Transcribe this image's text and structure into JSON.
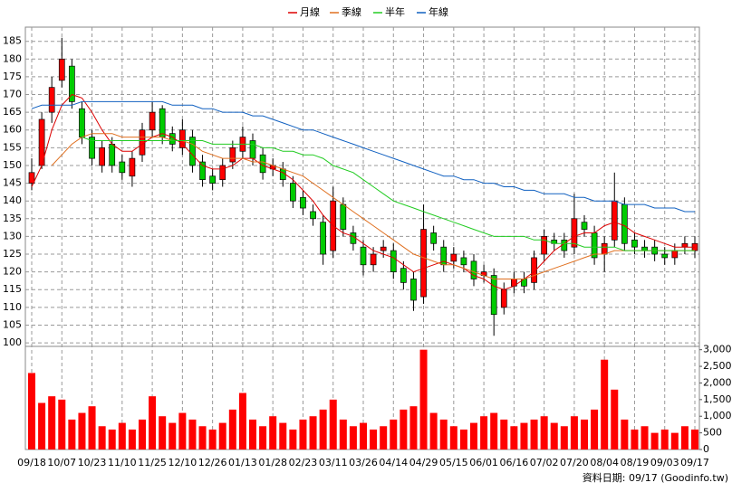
{
  "chart_data": {
    "type": "candlestick",
    "categories": [
      "09/18",
      null,
      null,
      "10/07",
      null,
      null,
      "10/23",
      null,
      null,
      "11/10",
      null,
      null,
      "11/25",
      null,
      null,
      "12/10",
      null,
      null,
      "12/26",
      null,
      null,
      "01/13",
      null,
      null,
      "01/28",
      null,
      null,
      "02/23",
      null,
      null,
      "03/11",
      null,
      null,
      "03/26",
      null,
      null,
      "04/14",
      null,
      null,
      "04/29",
      null,
      null,
      "05/15",
      null,
      null,
      "06/01",
      null,
      null,
      "06/16",
      null,
      null,
      "07/02",
      null,
      null,
      "07/20",
      null,
      null,
      "08/04",
      null,
      null,
      "08/19",
      null,
      null,
      "09/03",
      null,
      null,
      "09/17"
    ],
    "open": [
      145,
      150,
      165,
      174,
      178,
      166,
      158,
      150,
      156,
      151,
      147,
      153,
      160,
      166,
      159,
      155,
      158,
      151,
      147,
      146,
      151,
      154,
      157,
      153,
      149,
      149,
      145,
      141,
      137,
      134,
      126,
      139,
      131,
      127,
      122,
      126,
      126,
      121,
      118,
      113,
      131,
      127,
      123,
      124,
      123,
      119,
      119,
      110,
      116,
      118,
      117,
      125,
      129,
      129,
      127,
      134,
      131,
      125,
      129,
      139,
      129,
      127,
      127,
      125,
      124,
      127,
      126
    ],
    "high": [
      152,
      165,
      175,
      186,
      180,
      168,
      160,
      157,
      158,
      153,
      154,
      162,
      168,
      167,
      161,
      163,
      160,
      153,
      149,
      152,
      157,
      161,
      159,
      155,
      152,
      151,
      147,
      143,
      139,
      136,
      144,
      141,
      133,
      129,
      127,
      129,
      128,
      123,
      120,
      139,
      133,
      129,
      127,
      126,
      125,
      122,
      121,
      117,
      120,
      120,
      126,
      132,
      131,
      131,
      142,
      136,
      133,
      130,
      148,
      141,
      131,
      129,
      129,
      127,
      128,
      130,
      130
    ],
    "low": [
      143,
      149,
      162,
      172,
      166,
      156,
      150,
      148,
      148,
      146,
      144,
      151,
      158,
      156,
      154,
      153,
      148,
      144,
      143,
      144,
      149,
      152,
      150,
      146,
      147,
      144,
      138,
      136,
      133,
      122,
      124,
      130,
      126,
      119,
      120,
      124,
      118,
      115,
      109,
      111,
      126,
      120,
      121,
      120,
      116,
      117,
      102,
      108,
      114,
      114,
      115,
      123,
      126,
      124,
      125,
      130,
      122,
      120,
      127,
      126,
      125,
      124,
      123,
      122,
      122,
      125,
      124
    ],
    "close": [
      148,
      163,
      172,
      180,
      168,
      158,
      152,
      155,
      150,
      148,
      152,
      160,
      165,
      158,
      156,
      160,
      150,
      146,
      145,
      150,
      155,
      158,
      152,
      148,
      150,
      146,
      140,
      138,
      135,
      125,
      140,
      132,
      128,
      122,
      125,
      127,
      120,
      117,
      112,
      132,
      128,
      122,
      125,
      122,
      118,
      120,
      108,
      115,
      118,
      116,
      124,
      130,
      128,
      126,
      135,
      132,
      124,
      128,
      140,
      128,
      127,
      126,
      125,
      124,
      126,
      128,
      128
    ],
    "up_color": "#ff0000",
    "down_color": "#00cc00",
    "series": [
      {
        "name": "月線",
        "color": "#dd0000",
        "values": [
          144,
          150,
          160,
          167,
          170,
          169,
          165,
          160,
          156,
          154,
          154,
          156,
          158,
          159,
          158,
          156,
          153,
          150,
          149,
          149,
          150,
          152,
          152,
          150,
          149,
          148,
          146,
          143,
          140,
          136,
          133,
          131,
          130,
          128,
          126,
          125,
          124,
          122,
          120,
          121,
          122,
          123,
          122,
          121,
          119,
          118,
          116,
          115,
          116,
          118,
          120,
          123,
          126,
          128,
          130,
          131,
          131,
          133,
          134,
          133,
          131,
          130,
          129,
          128,
          127,
          127,
          127
        ]
      },
      {
        "name": "季線",
        "color": "#e07020",
        "values": [
          null,
          null,
          150,
          153,
          156,
          158,
          159,
          159,
          159,
          158,
          158,
          158,
          158,
          158,
          157,
          157,
          156,
          154,
          153,
          152,
          152,
          152,
          151,
          151,
          150,
          149,
          148,
          147,
          145,
          143,
          141,
          139,
          137,
          135,
          133,
          131,
          129,
          127,
          125,
          124,
          123,
          122,
          122,
          121,
          120,
          119,
          118,
          118,
          118,
          118,
          119,
          120,
          121,
          122,
          123,
          124,
          125,
          125,
          126,
          126,
          126,
          126,
          126,
          126,
          126,
          126,
          126
        ]
      },
      {
        "name": "半年",
        "color": "#22cc22",
        "values": [
          null,
          null,
          null,
          null,
          null,
          158,
          157,
          157,
          157,
          157,
          157,
          157,
          157,
          157,
          157,
          157,
          157,
          157,
          156,
          156,
          156,
          156,
          156,
          155,
          155,
          154,
          154,
          153,
          153,
          152,
          150,
          149,
          148,
          146,
          144,
          142,
          140,
          139,
          138,
          137,
          136,
          135,
          134,
          133,
          132,
          131,
          130,
          130,
          130,
          130,
          129,
          129,
          128,
          128,
          128,
          127,
          127,
          127,
          127,
          126,
          126,
          126,
          126,
          126,
          126,
          126,
          126
        ]
      },
      {
        "name": "年線",
        "color": "#1060c0",
        "values": [
          166,
          167,
          167,
          167,
          167,
          168,
          168,
          168,
          168,
          168,
          168,
          168,
          168,
          168,
          167,
          167,
          167,
          166,
          166,
          165,
          165,
          165,
          164,
          164,
          163,
          162,
          161,
          160,
          160,
          159,
          158,
          157,
          156,
          155,
          154,
          153,
          152,
          151,
          150,
          149,
          148,
          147,
          147,
          146,
          146,
          145,
          145,
          144,
          144,
          143,
          143,
          142,
          142,
          142,
          141,
          141,
          140,
          140,
          140,
          139,
          139,
          139,
          138,
          138,
          138,
          137,
          137
        ]
      }
    ],
    "ylim": [
      99,
      189
    ],
    "yticks": [
      100,
      105,
      110,
      115,
      120,
      125,
      130,
      135,
      140,
      145,
      150,
      155,
      160,
      165,
      170,
      175,
      180,
      185
    ],
    "volume": {
      "color": "#ff0000",
      "values": [
        2300,
        1400,
        1600,
        1500,
        900,
        1100,
        1300,
        700,
        600,
        800,
        600,
        900,
        1600,
        1000,
        800,
        1100,
        900,
        700,
        600,
        800,
        1200,
        1700,
        900,
        700,
        1000,
        800,
        600,
        900,
        1000,
        1200,
        1500,
        900,
        700,
        800,
        600,
        700,
        900,
        1200,
        1300,
        3000,
        1100,
        900,
        700,
        600,
        800,
        1000,
        1100,
        900,
        700,
        800,
        900,
        1000,
        800,
        700,
        1000,
        900,
        1200,
        2700,
        1800,
        900,
        600,
        700,
        500,
        600,
        500,
        700,
        600
      ],
      "ylim": [
        0,
        3100
      ],
      "yticks": [
        0,
        500,
        {
          "value": 1000,
          "label": "1,000"
        },
        {
          "value": 1500,
          "label": "1,500"
        },
        {
          "value": 2000,
          "label": "2,000"
        },
        {
          "value": 2500,
          "label": "2,500"
        },
        {
          "value": 3000,
          "label": "3,000"
        }
      ]
    },
    "grid": true,
    "footer": "資料日期: 09/17 (Goodinfo.tw)"
  }
}
